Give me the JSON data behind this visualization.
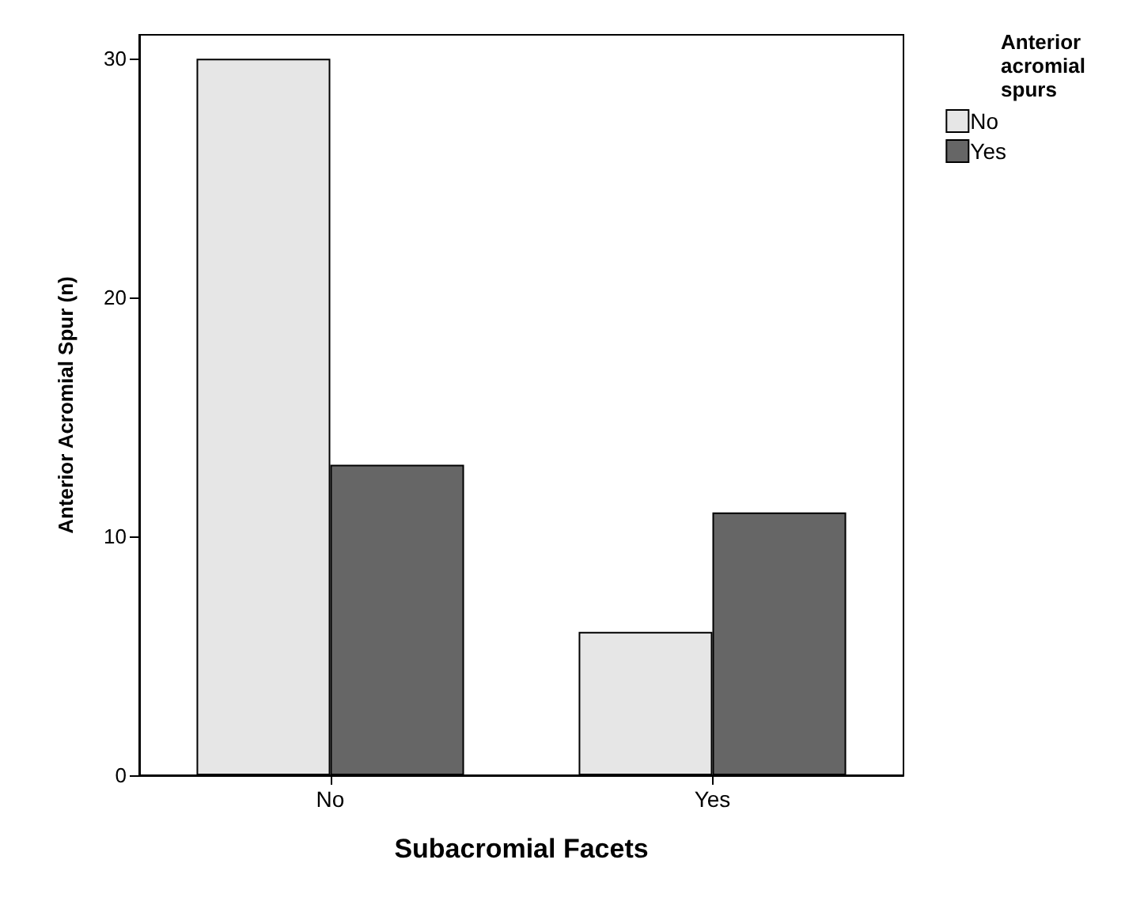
{
  "chart_data": {
    "type": "bar",
    "xlabel": "Subacromial Facets",
    "ylabel": "Anterior Acromial Spur (n)",
    "legend_title": "Anterior\nacromial\nspurs",
    "categories": [
      "No",
      "Yes"
    ],
    "series": [
      {
        "name": "No",
        "color": "#e6e6e6",
        "values": [
          30,
          6
        ]
      },
      {
        "name": "Yes",
        "color": "#666666",
        "values": [
          13,
          11
        ]
      }
    ],
    "ylim": [
      0,
      31
    ],
    "yticks": [
      0,
      10,
      20,
      30
    ],
    "grid": false,
    "legend": "top right"
  }
}
